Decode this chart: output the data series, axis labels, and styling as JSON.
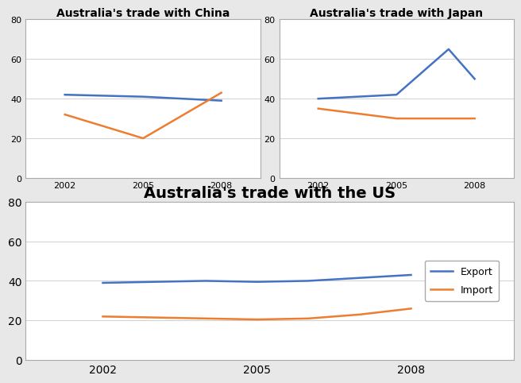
{
  "china": {
    "title": "Australia's trade with China",
    "x": [
      2002,
      2005,
      2008
    ],
    "export": [
      42,
      41,
      39
    ],
    "import": [
      32,
      20,
      43
    ],
    "ylim": [
      0,
      80
    ],
    "yticks": [
      0,
      20,
      40,
      60,
      80
    ],
    "xlim": [
      2000.5,
      2009.5
    ]
  },
  "japan": {
    "title": "Australia's trade with Japan",
    "x": [
      2002,
      2005,
      2007,
      2008
    ],
    "export": [
      40,
      42,
      65,
      50
    ],
    "import": [
      35,
      30,
      30,
      30
    ],
    "ylim": [
      0,
      80
    ],
    "yticks": [
      0,
      20,
      40,
      60,
      80
    ],
    "xticks": [
      2002,
      2005,
      2008
    ],
    "xticklabels": [
      "2002",
      "2005",
      "2008"
    ],
    "xlim": [
      2000.5,
      2009.5
    ]
  },
  "us": {
    "title": "Australia's trade with the US",
    "x": [
      2002,
      2003,
      2004,
      2005,
      2006,
      2007,
      2008
    ],
    "export": [
      39,
      39.5,
      40,
      39.5,
      40,
      41.5,
      43
    ],
    "import": [
      22,
      21.5,
      21,
      20.5,
      21,
      23,
      26
    ],
    "ylim": [
      0,
      80
    ],
    "yticks": [
      0,
      20,
      40,
      60,
      80
    ],
    "xticks": [
      2002,
      2005,
      2008
    ],
    "xlim": [
      2000.5,
      2010
    ]
  },
  "export_color": "#4472c4",
  "import_color": "#ed7d31",
  "legend_export": "Export",
  "legend_import": "Import",
  "page_bg": "#e8e8e8",
  "chart_bg": "#ffffff",
  "line_width": 1.8,
  "title_fontsize_small": 10,
  "title_fontsize_large": 14,
  "tick_fontsize_small": 8,
  "tick_fontsize_large": 10,
  "grid_color": "#d0d0d0"
}
